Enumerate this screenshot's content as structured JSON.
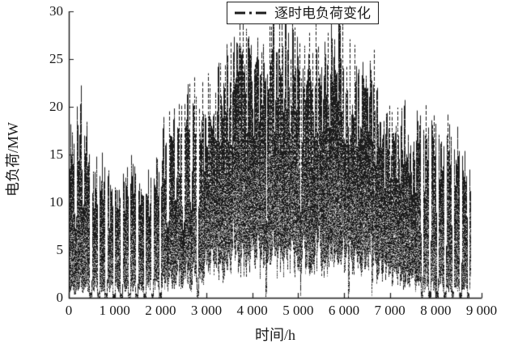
{
  "chart_data": {
    "type": "line",
    "title": "",
    "xlabel": "时间/h",
    "ylabel": "电负荷/MW",
    "xlim": [
      0,
      9000
    ],
    "ylim": [
      0,
      30
    ],
    "grid": false,
    "x_ticks": [
      0,
      1000,
      2000,
      3000,
      4000,
      5000,
      6000,
      7000,
      8000,
      9000
    ],
    "x_tick_labels": [
      "0",
      "1 000",
      "2 000",
      "3 000",
      "4 000",
      "5 000",
      "6 000",
      "7 000",
      "8 000",
      "9 000"
    ],
    "y_ticks": [
      0,
      5,
      10,
      15,
      20,
      25,
      30
    ],
    "y_tick_labels": [
      "0",
      "5",
      "10",
      "15",
      "20",
      "25",
      "30"
    ],
    "legend": {
      "label": "逐时电负荷变化",
      "line_style": "dash-dot",
      "position": "top-center"
    },
    "series_description": "Hourly electric load for one year (8760 h), daily cycles with summer maximum ~28 MW and weekend shutdowns to 0 in the first ~2000 h and after ~7650 h",
    "generator": {
      "seed": 20240612,
      "hours": 8760,
      "daily_peak_envelope": [
        [
          0,
          15
        ],
        [
          250,
          19
        ],
        [
          500,
          13
        ],
        [
          800,
          13
        ],
        [
          1100,
          10
        ],
        [
          1400,
          14
        ],
        [
          1700,
          11
        ],
        [
          2000,
          16
        ],
        [
          2300,
          19
        ],
        [
          2600,
          20
        ],
        [
          2900,
          19
        ],
        [
          3200,
          22
        ],
        [
          3500,
          26
        ],
        [
          3800,
          27
        ],
        [
          4100,
          25
        ],
        [
          4400,
          27
        ],
        [
          4700,
          28
        ],
        [
          5000,
          26
        ],
        [
          5300,
          24
        ],
        [
          5600,
          26
        ],
        [
          5900,
          28
        ],
        [
          6200,
          22
        ],
        [
          6500,
          24
        ],
        [
          6800,
          20
        ],
        [
          7100,
          19
        ],
        [
          7400,
          17
        ],
        [
          7700,
          18
        ],
        [
          8000,
          16
        ],
        [
          8300,
          17
        ],
        [
          8600,
          14
        ],
        [
          8760,
          13
        ]
      ],
      "daily_min_envelope": [
        [
          0,
          1
        ],
        [
          2000,
          1.6
        ],
        [
          3000,
          3.5
        ],
        [
          4500,
          5.2
        ],
        [
          6000,
          4.4
        ],
        [
          7000,
          3
        ],
        [
          7600,
          1.5
        ],
        [
          8760,
          0.8
        ]
      ],
      "weekend_zero_ranges": [
        [
          380,
          2050
        ],
        [
          7650,
          8760
        ]
      ],
      "weekend_factor_shoulder": 0.5,
      "weekend_factor_mid": 0.85,
      "extra_shutdowns": [
        [
          2790,
          40
        ],
        [
          4300,
          18
        ],
        [
          5050,
          14
        ],
        [
          6090,
          24
        ],
        [
          6600,
          16
        ]
      ],
      "peak_clamp": 28.6
    },
    "colors": {
      "line_dark": "#1c1c1c",
      "line_gray": "#a0a0a0",
      "axis": "#1a1a1a",
      "background": "#ffffff"
    }
  }
}
